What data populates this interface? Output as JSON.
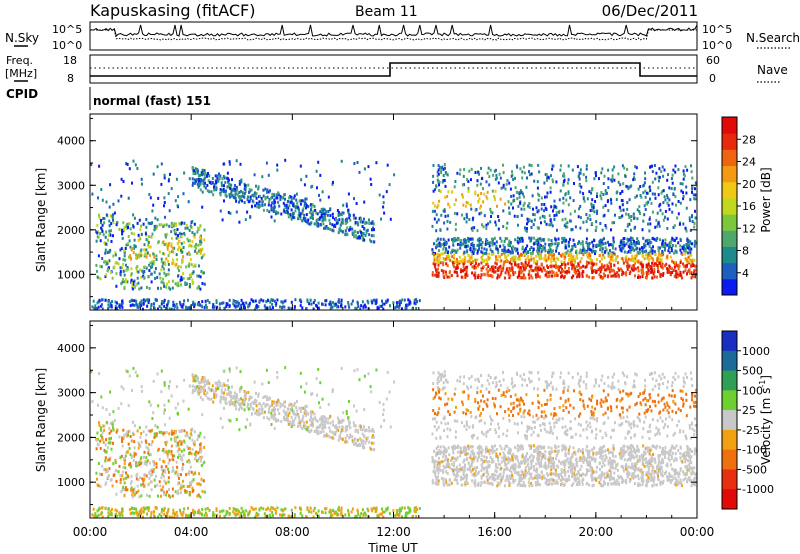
{
  "header": {
    "station": "Kapuskasing (fitACF)",
    "beam": "Beam 11",
    "date": "06/Dec/2011"
  },
  "panels": {
    "nsky_label": "N.Sky",
    "nsearch_label": "N.Search",
    "nsky_ticks": [
      "10^5",
      "10^0"
    ],
    "nsearch_ticks": [
      "10^5",
      "10^0"
    ],
    "freq_label": [
      "Freq.",
      "[MHz]"
    ],
    "freq_ticks": [
      "18",
      "8"
    ],
    "nave_label": "Nave",
    "nave_ticks": [
      "60",
      "0"
    ],
    "cpid_label": "CPID",
    "cpid_value": "normal (fast) 151"
  },
  "chart_data": [
    {
      "type": "heatmap",
      "title": "",
      "ylabel": "Slant Range [km]",
      "xlabel": "",
      "y_ticks": [
        "1000",
        "2000",
        "3000",
        "4000"
      ],
      "ylim": [
        200,
        4600
      ],
      "xlim": [
        "00:00",
        "24:00"
      ],
      "colorbar": {
        "label": "Power [dB]",
        "ticks": [
          "4",
          "8",
          "12",
          "16",
          "20",
          "24",
          "28"
        ],
        "colors": [
          "#0a1cf0",
          "#1c5fbe",
          "#1f8a8c",
          "#4ea86d",
          "#7cc83c",
          "#c2d81e",
          "#f0c815",
          "#f39a12",
          "#ef6410",
          "#e82a0c",
          "#e00a08"
        ]
      },
      "regions": [
        {
          "desc": "patchy echoes 00:00-04:00",
          "t": [
            0.2,
            4.5
          ],
          "r": [
            700,
            2300
          ],
          "power_db": 12
        },
        {
          "desc": "descending band 04:00-11:00",
          "t": [
            4.0,
            11.2
          ],
          "r": [
            1700,
            3500
          ],
          "power_db": 10
        },
        {
          "desc": "upper band 13:30-24:00",
          "t": [
            13.5,
            24.0
          ],
          "r": [
            2000,
            3500
          ],
          "power_db": 10
        },
        {
          "desc": "strong lower band 13:30-24:00",
          "t": [
            13.5,
            24.0
          ],
          "r": [
            900,
            1900
          ],
          "power_db": 26
        }
      ]
    },
    {
      "type": "heatmap",
      "title": "",
      "ylabel": "Slant Range [km]",
      "xlabel": "Time UT",
      "y_ticks": [
        "1000",
        "2000",
        "3000",
        "4000"
      ],
      "x_ticks": [
        "00:00",
        "04:00",
        "08:00",
        "12:00",
        "16:00",
        "20:00",
        "00:00"
      ],
      "ylim": [
        200,
        4600
      ],
      "xlim": [
        "00:00",
        "24:00"
      ],
      "colorbar": {
        "label": "Velocity [m s",
        "label_sup": "-1",
        "label_tail": "]",
        "ticks": [
          "1000",
          "500",
          "100",
          "25",
          "-25",
          "-100",
          "-500",
          "-1000"
        ],
        "colors": [
          "#1a2ec0",
          "#1c6a9a",
          "#2ea055",
          "#6ed030",
          "#c8c8c8",
          "#f0a010",
          "#f07010",
          "#e83010",
          "#e00a08"
        ]
      },
      "regions": [
        {
          "desc": "mixed 00:00-04:00",
          "t": [
            0.2,
            4.5
          ],
          "r": [
            700,
            2300
          ],
          "velocity": -100
        },
        {
          "desc": "ground scatter band 04:00-11:00",
          "t": [
            4.0,
            11.2
          ],
          "r": [
            1700,
            3500
          ],
          "velocity": 0
        },
        {
          "desc": "upper band 13:30-24:00",
          "t": [
            13.5,
            24.0
          ],
          "r": [
            2000,
            3500
          ],
          "velocity": -300
        },
        {
          "desc": "ground scatter lower band 13:30-24:00",
          "t": [
            13.5,
            24.0
          ],
          "r": [
            900,
            1900
          ],
          "velocity": 0
        }
      ]
    }
  ]
}
